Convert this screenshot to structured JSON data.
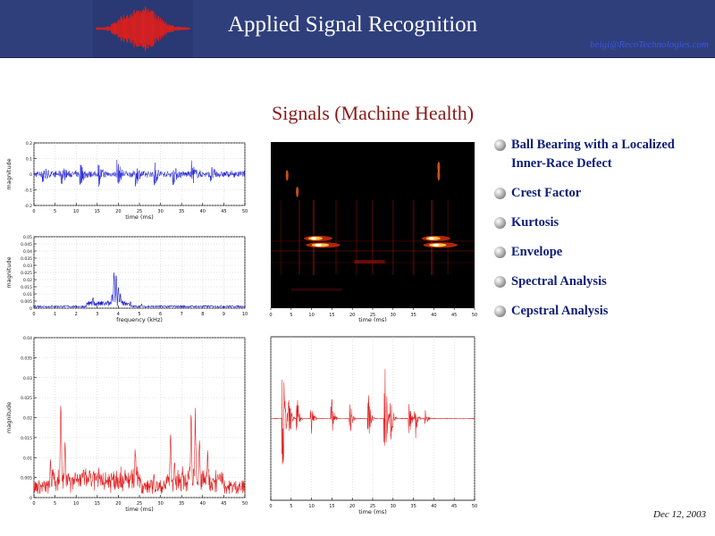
{
  "header": {
    "title": "Applied Signal Recognition",
    "email": "beigi@RecoTechnologies.com"
  },
  "slide": {
    "title": "Signals (Machine Health)",
    "date": "Dec 12, 2003"
  },
  "bullets": [
    {
      "label": "Ball Bearing with a Localized Inner-Race Defect",
      "icon": "sphere-bullet-icon"
    },
    {
      "label": "Crest Factor",
      "icon": "sphere-bullet-icon"
    },
    {
      "label": "Kurtosis",
      "icon": "sphere-bullet-icon"
    },
    {
      "label": "Envelope",
      "icon": "sphere-bullet-icon"
    },
    {
      "label": "Spectral Analysis",
      "icon": "sphere-bullet-icon"
    },
    {
      "label": "Cepstral Analysis",
      "icon": "sphere-bullet-icon"
    }
  ],
  "colors": {
    "header_bg": "#2f3f7c",
    "title_red": "#8b1a1a",
    "bullet_blue": "#0f1d7a",
    "waveform_blue": "#1a1ad6",
    "waveform_red": "#e02020"
  },
  "chart_data": [
    {
      "type": "line",
      "id": "time-signal",
      "xlabel": "time (ms)",
      "ylabel": "magnitude",
      "xlim": [
        0,
        51
      ],
      "ylim": [
        -0.25,
        0.25
      ],
      "x_ticks": [
        "0",
        "5",
        "10",
        "15",
        "20",
        "25",
        "30",
        "35",
        "40",
        "45",
        "50"
      ],
      "y_ticks": [
        "-0.2",
        "-0.1",
        "0",
        "0.1",
        "0.2"
      ],
      "color": "#1a1ad6",
      "grid": true,
      "bursts": [
        2,
        6.5,
        11,
        15.5,
        20,
        24.5,
        29,
        33.5,
        38,
        42.5
      ]
    },
    {
      "type": "line",
      "id": "spectrum",
      "xlabel": "frequency (kHz)",
      "ylabel": "magnitude",
      "xlim": [
        0,
        10
      ],
      "ylim": [
        0,
        0.055
      ],
      "x_ticks": [
        "0",
        "1",
        "2",
        "3",
        "4",
        "5",
        "6",
        "7",
        "8",
        "9",
        "10"
      ],
      "y_ticks": [
        "0",
        "0.005",
        "0.01",
        "0.015",
        "0.02",
        "0.025",
        "0.03",
        "0.035",
        "0.04",
        "0.045",
        "0.05"
      ],
      "color": "#1a1ad6",
      "grid": true,
      "peaks": [
        [
          2.8,
          0.013
        ],
        [
          3.7,
          0.015
        ],
        [
          3.8,
          0.038
        ],
        [
          3.9,
          0.04
        ],
        [
          4.0,
          0.022
        ],
        [
          4.1,
          0.016
        ],
        [
          4.4,
          0.006
        ],
        [
          5.1,
          0.004
        ]
      ]
    },
    {
      "type": "heatmap",
      "id": "spectrogram",
      "xlabel": "time (ms)",
      "xlim": [
        0,
        50
      ],
      "x_ticks": [
        "0",
        "5",
        "10",
        "15",
        "20",
        "25",
        "30",
        "35",
        "40",
        "45",
        "50"
      ],
      "grid": false
    },
    {
      "type": "line",
      "id": "envelope",
      "xlabel": "time (ms)",
      "ylabel": "magnitude",
      "xlim": [
        0,
        51
      ],
      "ylim": [
        0,
        0.045
      ],
      "x_ticks": [
        "0",
        "5",
        "10",
        "15",
        "20",
        "25",
        "30",
        "35",
        "40",
        "45",
        "50"
      ],
      "y_ticks": [
        "0",
        "0.005",
        "0.01",
        "0.015",
        "0.02",
        "0.025",
        "0.03",
        "0.035",
        "0.04"
      ],
      "color": "#e02020",
      "grid": true,
      "peaks": [
        [
          4,
          0.012
        ],
        [
          6.5,
          0.037
        ],
        [
          7.5,
          0.02
        ],
        [
          10,
          0.01
        ],
        [
          12,
          0.008
        ],
        [
          16,
          0.007
        ],
        [
          20,
          0.006
        ],
        [
          24.5,
          0.017
        ],
        [
          29,
          0.008
        ],
        [
          33,
          0.023
        ],
        [
          34,
          0.012
        ],
        [
          38,
          0.027
        ],
        [
          39,
          0.03
        ],
        [
          40,
          0.02
        ],
        [
          42,
          0.015
        ],
        [
          45,
          0.006
        ]
      ]
    },
    {
      "type": "line",
      "id": "filtered-signal",
      "xlabel": "time (ms)",
      "xlim": [
        0,
        50
      ],
      "x_ticks": [
        "0",
        "5",
        "10",
        "15",
        "20",
        "25",
        "30",
        "35",
        "40",
        "45",
        "50"
      ],
      "color": "#e02020",
      "grid": true,
      "bursts": [
        [
          3,
          0.9
        ],
        [
          4.5,
          0.35
        ],
        [
          6.5,
          0.3
        ],
        [
          10,
          0.25
        ],
        [
          15,
          0.3
        ],
        [
          19.5,
          0.25
        ],
        [
          24,
          0.35
        ],
        [
          28,
          0.9
        ],
        [
          29.5,
          0.4
        ],
        [
          34,
          0.35
        ],
        [
          35.5,
          0.3
        ],
        [
          38,
          0.15
        ]
      ]
    }
  ]
}
